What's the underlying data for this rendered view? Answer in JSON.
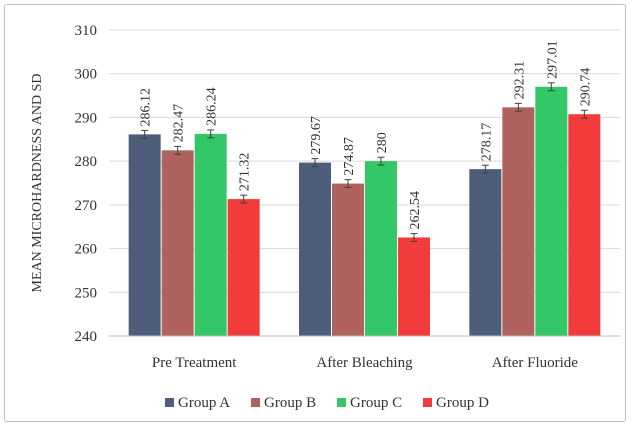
{
  "chart_data": {
    "type": "bar",
    "title": "",
    "xlabel": "",
    "ylabel": "MEAN MICROHARDNESS AND SD",
    "ylim": [
      240,
      310
    ],
    "yticks": [
      240,
      250,
      260,
      270,
      280,
      290,
      300,
      310
    ],
    "grid": true,
    "legend_position": "bottom",
    "categories": [
      "Pre Treatment",
      "After Bleaching",
      "After Fluoride"
    ],
    "series": [
      {
        "name": "Group A",
        "color": "#4e5d7a",
        "values": [
          286.12,
          279.67,
          278.17
        ],
        "labels": [
          "286.12",
          "279.67",
          "278.17"
        ],
        "sd": [
          0.9,
          0.9,
          0.9
        ]
      },
      {
        "name": "Group B",
        "color": "#b0635e",
        "values": [
          282.47,
          274.87,
          292.31
        ],
        "labels": [
          "282.47",
          "274.87",
          "292.31"
        ],
        "sd": [
          0.9,
          0.9,
          0.9
        ]
      },
      {
        "name": "Group C",
        "color": "#33c768",
        "values": [
          286.24,
          280,
          297.01
        ],
        "labels": [
          "286.24",
          "280",
          "297.01"
        ],
        "sd": [
          0.9,
          0.9,
          0.9
        ]
      },
      {
        "name": "Group D",
        "color": "#f23b3b",
        "values": [
          271.32,
          262.54,
          290.74
        ],
        "labels": [
          "271.32",
          "262.54",
          "290.74"
        ],
        "sd": [
          0.9,
          0.9,
          0.9
        ]
      }
    ]
  }
}
